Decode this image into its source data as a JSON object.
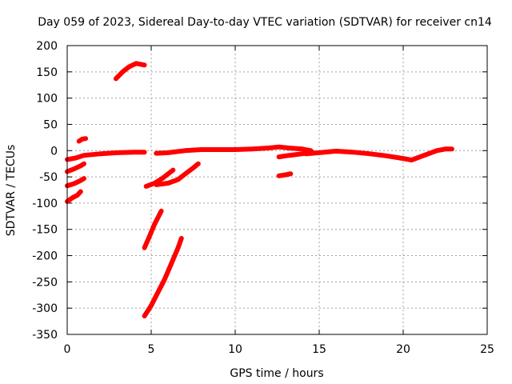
{
  "chart_data": {
    "type": "scatter",
    "title": "Day 059 of 2023, Sidereal Day-to-day VTEC variation (SDTVAR) for receiver cn14",
    "xlabel": "GPS time / hours",
    "ylabel": "SDTVAR / TECUs",
    "xlim": [
      0,
      25
    ],
    "ylim": [
      -350,
      200
    ],
    "x_ticks": [
      "0",
      "5",
      "10",
      "15",
      "20",
      "25"
    ],
    "y_ticks": [
      "200",
      "150",
      "100",
      "50",
      "0",
      "-50",
      "-100",
      "-150",
      "-200",
      "-250",
      "-300",
      "-350"
    ],
    "grid": true,
    "marker_color": "#ff0000",
    "series": [
      {
        "segments": [
          [
            [
              0.0,
              -17
            ],
            [
              0.5,
              -14
            ],
            [
              1.0,
              -9
            ],
            [
              2.0,
              -6
            ],
            [
              3.0,
              -4
            ],
            [
              4.0,
              -3
            ],
            [
              4.6,
              -3
            ]
          ],
          [
            [
              0.0,
              -97
            ],
            [
              0.3,
              -90
            ],
            [
              0.6,
              -85
            ],
            [
              0.8,
              -78
            ]
          ],
          [
            [
              0.0,
              -67
            ],
            [
              0.4,
              -63
            ],
            [
              0.8,
              -57
            ],
            [
              1.0,
              -53
            ]
          ],
          [
            [
              0.0,
              -40
            ],
            [
              0.4,
              -35
            ],
            [
              0.8,
              -29
            ],
            [
              1.0,
              -25
            ]
          ],
          [
            [
              0.7,
              18
            ],
            [
              0.9,
              22
            ],
            [
              1.1,
              23
            ]
          ],
          [
            [
              2.9,
              137
            ],
            [
              3.3,
              150
            ],
            [
              3.7,
              160
            ],
            [
              4.1,
              166
            ],
            [
              4.6,
              163
            ]
          ],
          [
            [
              4.6,
              -315
            ],
            [
              5.0,
              -295
            ],
            [
              5.4,
              -270
            ],
            [
              5.8,
              -245
            ],
            [
              6.2,
              -215
            ],
            [
              6.6,
              -185
            ],
            [
              6.8,
              -167
            ]
          ],
          [
            [
              4.6,
              -185
            ],
            [
              4.9,
              -163
            ],
            [
              5.2,
              -140
            ],
            [
              5.6,
              -115
            ]
          ],
          [
            [
              4.7,
              -68
            ],
            [
              5.2,
              -62
            ],
            [
              5.7,
              -52
            ],
            [
              6.1,
              -42
            ],
            [
              6.3,
              -37
            ]
          ],
          [
            [
              5.3,
              -65
            ],
            [
              6.0,
              -62
            ],
            [
              6.6,
              -55
            ],
            [
              7.0,
              -45
            ],
            [
              7.5,
              -33
            ],
            [
              7.8,
              -25
            ]
          ],
          [
            [
              5.3,
              -5
            ],
            [
              6.0,
              -4
            ],
            [
              7.0,
              0
            ],
            [
              8.0,
              2
            ],
            [
              9.0,
              2
            ],
            [
              10.0,
              2
            ],
            [
              11.0,
              3
            ],
            [
              12.0,
              5
            ],
            [
              12.6,
              7
            ],
            [
              13.2,
              5
            ],
            [
              14.0,
              3
            ],
            [
              14.5,
              0
            ]
          ],
          [
            [
              12.6,
              -12
            ],
            [
              13.0,
              -10
            ],
            [
              13.5,
              -8
            ],
            [
              14.0,
              -6
            ],
            [
              14.6,
              -3
            ]
          ],
          [
            [
              12.6,
              -48
            ],
            [
              13.0,
              -46
            ],
            [
              13.3,
              -44
            ]
          ],
          [
            [
              14.2,
              -6
            ],
            [
              15.0,
              -4
            ],
            [
              16.0,
              -1
            ],
            [
              17.0,
              -3
            ],
            [
              18.0,
              -6
            ],
            [
              19.0,
              -10
            ],
            [
              20.0,
              -15
            ],
            [
              20.5,
              -18
            ],
            [
              21.0,
              -12
            ],
            [
              21.5,
              -6
            ],
            [
              22.0,
              0
            ],
            [
              22.5,
              3
            ],
            [
              22.9,
              3
            ]
          ]
        ]
      }
    ]
  }
}
